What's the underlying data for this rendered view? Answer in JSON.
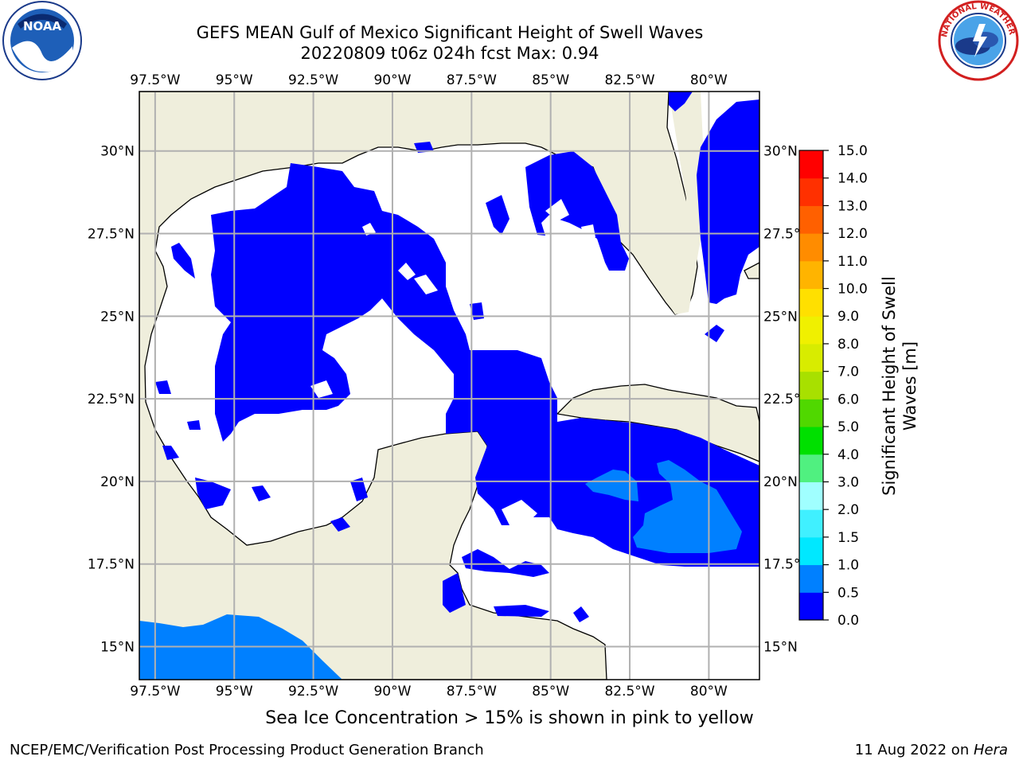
{
  "header": {
    "title_line1": "GEFS MEAN Gulf of Mexico Significant Height of Swell Waves",
    "title_line2": "20220809 t06z 024h fcst   Max: 0.94"
  },
  "logos": {
    "left": {
      "name": "noaa-logo",
      "text": "NOAA"
    },
    "right": {
      "name": "nws-logo",
      "text": "NATIONAL WEATHER SERVICE"
    }
  },
  "map": {
    "lon_ticks": [
      "97.5°W",
      "95°W",
      "92.5°W",
      "90°W",
      "87.5°W",
      "85°W",
      "82.5°W",
      "80°W"
    ],
    "lat_ticks": [
      "30°N",
      "27.5°N",
      "25°N",
      "22.5°N",
      "20°N",
      "17.5°N",
      "15°N"
    ],
    "lon_range": [
      -98,
      -78.4
    ],
    "lat_range": [
      14,
      31.8
    ],
    "colors": {
      "land": "#efeedc",
      "zero_to_half": "#0000ff",
      "half_to_one": "#0080ff",
      "grid": "#b0b0b0"
    }
  },
  "colorbar": {
    "label_line1": "Significant Height of Swell",
    "label_line2": "Waves [m]",
    "ticks": [
      "0.0",
      "0.5",
      "1.0",
      "1.5",
      "2.0",
      "3.0",
      "4.0",
      "5.0",
      "6.0",
      "7.0",
      "8.0",
      "9.0",
      "10.0",
      "11.0",
      "12.0",
      "13.0",
      "14.0",
      "15.0"
    ],
    "colors": [
      "#0000ff",
      "#0080ff",
      "#00e8ff",
      "#40f0ff",
      "#a0ffff",
      "#50f080",
      "#00e000",
      "#50d800",
      "#a8e000",
      "#d8ec00",
      "#f0f000",
      "#ffe000",
      "#ffb400",
      "#ff8c00",
      "#ff6000",
      "#ff3000",
      "#ff0000"
    ]
  },
  "note": "Sea Ice Concentration > 15% is shown in pink to yellow",
  "footer": {
    "left": "NCEP/EMC/Verification Post Processing Product Generation Branch",
    "right_prefix": "11 Aug 2022 on ",
    "right_host": "Hera"
  }
}
